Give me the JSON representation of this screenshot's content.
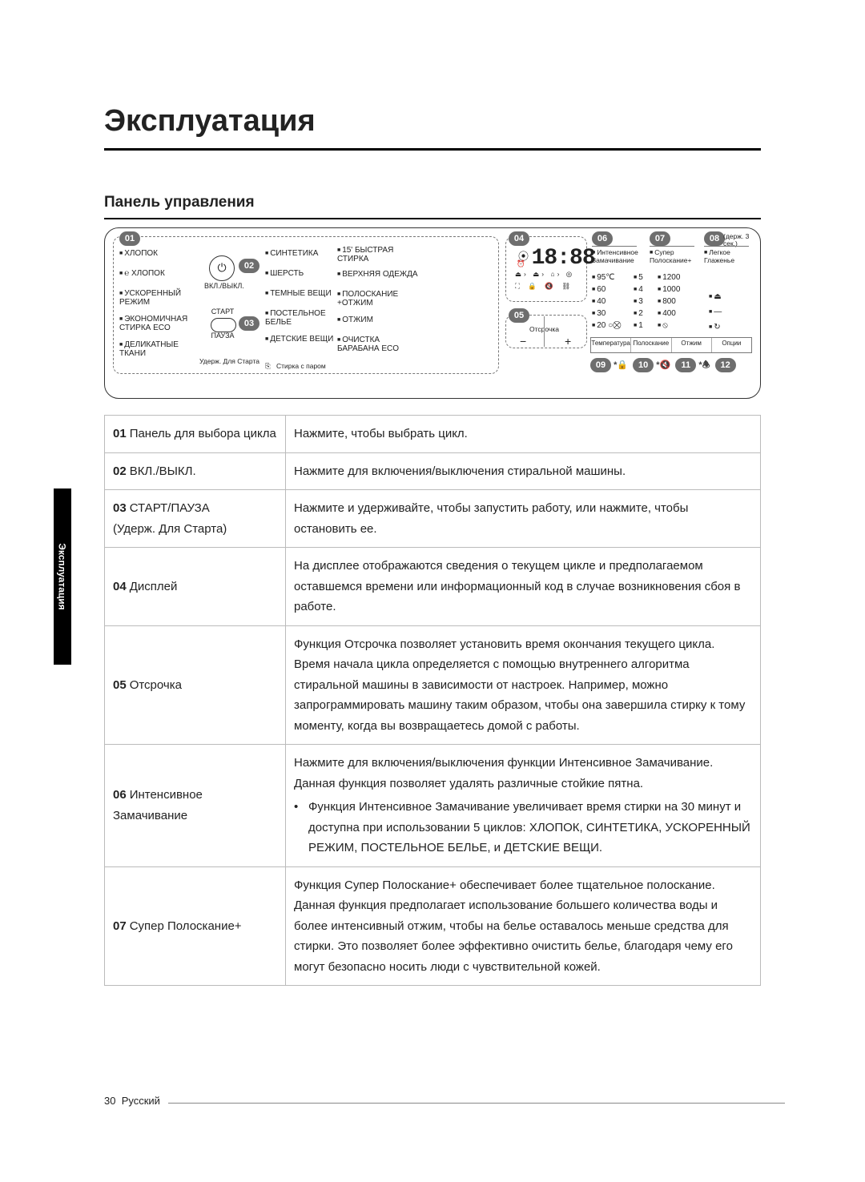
{
  "title": "Эксплуатация",
  "section": "Панель управления",
  "side_tab": "Эксплуатация",
  "foot_page": "30",
  "foot_lang": "Русский",
  "panel": {
    "badges": {
      "b01": "01",
      "b02": "02",
      "b03": "03",
      "b04": "04",
      "b05": "05",
      "b06": "06",
      "b07": "07",
      "b08": "08",
      "b09": "09",
      "b10": "10",
      "b11": "11",
      "b12": "12"
    },
    "hold3": "(держ. 3 сек.)",
    "power_label": "ВКЛ./ВЫКЛ.",
    "start_top": "СТАРТ",
    "start_bot": "ПАУЗА",
    "hold_start": "Удерж. Для Старта",
    "steam": "Стирка с паром",
    "display": "18:88",
    "delay_label": "Отсрочка",
    "col1": [
      "ХЛОПОК",
      "ХЛОПОК",
      "УСКОРЕННЫЙ\nРЕЖИМ",
      "ЭКОНОМИЧНАЯ\nСТИРКА ECO",
      "ДЕЛИКАТНЫЕ\nТКАНИ"
    ],
    "col1_eco": "℮",
    "col2": [
      "СИНТЕТИКА",
      "ШЕРСТЬ",
      "ТЕМНЫЕ ВЕЩИ",
      "ПОСТЕЛЬНОЕ\nБЕЛЬЕ",
      "ДЕТСКИЕ ВЕЩИ"
    ],
    "col3": [
      "15' БЫСТРАЯ\nСТИРКА",
      "ВЕРХНЯЯ ОДЕЖДА",
      "ПОЛОСКАНИЕ\n+ОТЖИМ",
      "ОТЖИМ",
      "ОЧИСТКА\nБАРАБАНА ECO"
    ],
    "opts": {
      "soak": "Интенсивное\nЗамачивание",
      "rinsep": "Супер\nПолоскание+",
      "iron": "Легкое\nГлаженье"
    },
    "temp": [
      "95℃",
      "60",
      "40",
      "30",
      "20 ○"
    ],
    "temp_cold": "⛒",
    "rinse": [
      "5",
      "4",
      "3",
      "2",
      "1"
    ],
    "spin": [
      "1200",
      "1000",
      "800",
      "400",
      "⦸"
    ],
    "opt_icons": [
      "⏏",
      "―",
      "↻"
    ],
    "btn_labels": [
      "Температура",
      "Полоскание",
      "Отжим",
      "Опции"
    ],
    "foot_icons": {
      "star": "*",
      "a": "🔒",
      "b": "🔇",
      "c": "🕭"
    }
  },
  "table": {
    "rows": [
      {
        "n": "01",
        "l": "Панель для выбора цикла",
        "r": "Нажмите, чтобы выбрать цикл."
      },
      {
        "n": "02",
        "l": "ВКЛ./ВЫКЛ.",
        "r": "Нажмите для включения/выключения стиральной машины."
      },
      {
        "n": "03",
        "l": "СТАРТ/ПАУЗА\n(Удерж. Для Старта)",
        "r": "Нажмите и удерживайте, чтобы запустить работу, или нажмите, чтобы остановить ее."
      },
      {
        "n": "04",
        "l": "Дисплей",
        "r": "На дисплее отображаются сведения о текущем цикле и предполагаемом оставшемся времени или информационный код в случае возникновения сбоя в работе."
      },
      {
        "n": "05",
        "l": "Отсрочка",
        "r": "Функция Отсрочка позволяет установить время окончания текущего цикла. Время начала цикла определяется с помощью внутреннего алгоритма стиральной машины в зависимости от настроек. Например, можно запрограммировать машину таким образом, чтобы она завершила стирку к тому моменту, когда вы возвращаетесь домой с работы."
      },
      {
        "n": "06",
        "l": "Интенсивное Замачивание",
        "r": "Нажмите для включения/выключения функции Интенсивное Замачивание. Данная функция позволяет удалять различные стойкие пятна.",
        "bullet": "Функция Интенсивное Замачивание увеличивает время стирки на 30 минут и доступна при использовании 5 циклов: ХЛОПОК, СИНТЕТИКА, УСКОРЕННЫЙ РЕЖИМ, ПОСТЕЛЬНОЕ БЕЛЬЕ, и ДЕТСКИЕ ВЕЩИ."
      },
      {
        "n": "07",
        "l": "Супер Полоскание+",
        "r": "Функция Супер Полоскание+ обеспечивает более тщательное полоскание. Данная функция предполагает использование большего количества воды и более интенсивный отжим, чтобы на белье оставалось меньше средства для стирки. Это позволяет более эффективно очистить белье, благодаря чему его могут безопасно носить люди с чувствительной кожей."
      }
    ]
  }
}
